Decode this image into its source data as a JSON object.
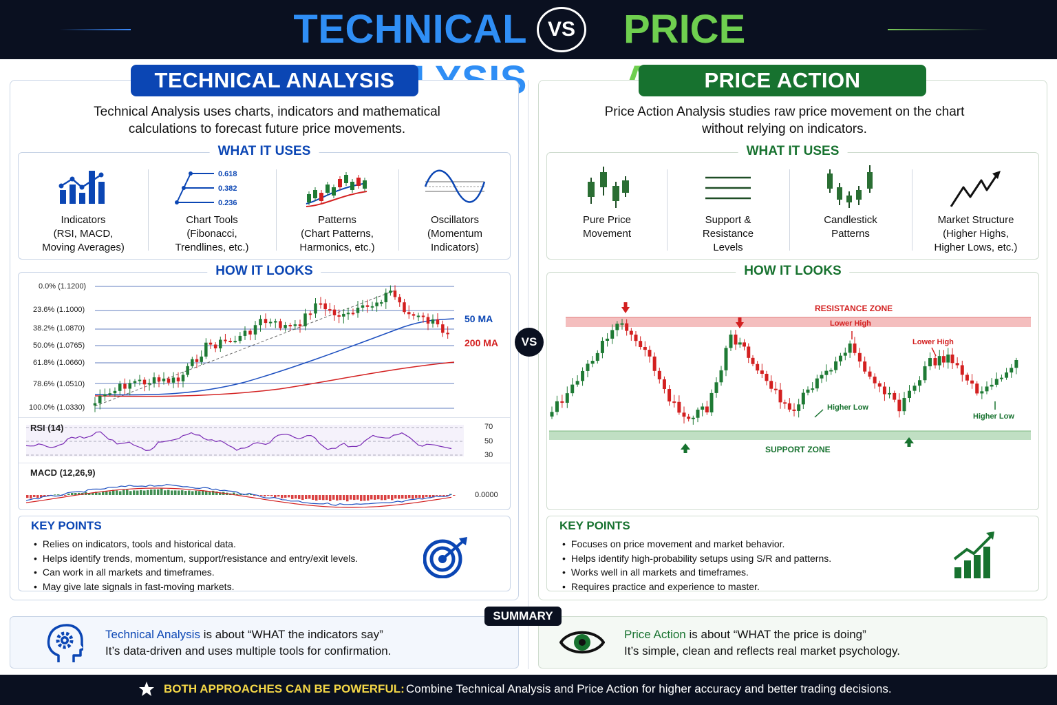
{
  "header": {
    "title_left": "TECHNICAL ANALYSIS",
    "vs": "VS",
    "title_right": "PRICE ACTION"
  },
  "left": {
    "title": "TECHNICAL ANALYSIS",
    "intro_line1": "Technical Analysis uses charts, indicators and mathematical",
    "intro_line2": "calculations to forecast future price movements.",
    "uses_title": "WHAT IT USES",
    "uses": [
      {
        "icon": "bar-chart-icon",
        "l1": "Indicators",
        "l2": "(RSI, MACD,",
        "l3": "Moving Averages)"
      },
      {
        "icon": "fibonacci-icon",
        "l1": "Chart Tools",
        "l2": "(Fibonacci,",
        "l3": "Trendlines, etc.)"
      },
      {
        "icon": "candlestick-pattern-icon",
        "l1": "Patterns",
        "l2": "(Chart Patterns,",
        "l3": "Harmonics, etc.)"
      },
      {
        "icon": "oscillator-wave-icon",
        "l1": "Oscillators",
        "l2": "(Momentum",
        "l3": "Indicators)"
      }
    ],
    "fib_icon_labels": [
      "0.618",
      "0.382",
      "0.236"
    ],
    "looks_title": "HOW IT LOOKS",
    "fib_levels": [
      "0.0% (1.1200)",
      "23.6% (1.1000)",
      "38.2% (1.0870)",
      "50.0% (1.0765)",
      "61.8% (1.0660)",
      "78.6% (1.0510)",
      "100.0% (1.0330)"
    ],
    "ma_50": "50 MA",
    "ma_200": "200 MA",
    "rsi_label": "RSI (14)",
    "rsi_levels": [
      "70",
      "50",
      "30"
    ],
    "macd_label": "MACD (12,26,9)",
    "macd_zero": "0.0000",
    "key_title": "KEY POINTS",
    "key_points": [
      "Relies on indicators, tools and historical data.",
      "Helps identify trends, momentum, support/resistance and entry/exit levels.",
      "Can work in all markets and timeframes.",
      "May give late signals in fast-moving markets."
    ],
    "key_icon": "target-icon"
  },
  "right": {
    "title": "PRICE ACTION",
    "intro_line1": "Price Action Analysis studies raw price movement on the chart",
    "intro_line2": "without relying on indicators.",
    "uses_title": "WHAT IT USES",
    "uses": [
      {
        "icon": "candles-icon",
        "l1": "Pure Price",
        "l2": "Movement",
        "l3": ""
      },
      {
        "icon": "horizontal-lines-icon",
        "l1": "Support &",
        "l2": "Resistance",
        "l3": "Levels"
      },
      {
        "icon": "candlestick-icon",
        "l1": "Candlestick",
        "l2": "Patterns",
        "l3": ""
      },
      {
        "icon": "zigzag-arrow-icon",
        "l1": "Market Structure",
        "l2": "(Higher Highs,",
        "l3": "Higher Lows, etc.)"
      }
    ],
    "looks_title": "HOW IT LOOKS",
    "resistance_zone": "RESISTANCE ZONE",
    "support_zone": "SUPPORT ZONE",
    "lower_high_1": "Lower High",
    "lower_high_2": "Lower High",
    "higher_low_1": "Higher Low",
    "higher_low_2": "Higher Low",
    "key_title": "KEY POINTS",
    "key_points": [
      "Focuses on price movement and market behavior.",
      "Helps identify high-probability setups using S/R and patterns.",
      "Works well in all markets and timeframes.",
      "Requires practice and experience to master."
    ],
    "key_icon": "growth-chart-icon"
  },
  "mid_vs": "VS",
  "summary": {
    "title": "SUMMARY",
    "left_strong": "Technical Analysis",
    "left_rest": " is about “WHAT the indicators say”",
    "left_line2": "It’s data-driven and uses multiple tools for confirmation.",
    "right_strong": "Price Action",
    "right_rest": " is about “WHAT the price is doing”",
    "right_line2": "It’s simple, clean and reflects real market psychology.",
    "left_icon": "head-gear-icon",
    "right_icon": "eye-icon"
  },
  "footer": {
    "icon": "star-icon",
    "strong": "BOTH APPROACHES CAN BE POWERFUL:",
    "rest": "Combine Technical Analysis and Price Action for higher accuracy and better trading decisions."
  },
  "colors": {
    "navy": "#0a1020",
    "blue": "#0b46b4",
    "green": "#17722f",
    "bull": "#1e7a34",
    "bear": "#d32020",
    "accent_yellow": "#f5d847"
  }
}
